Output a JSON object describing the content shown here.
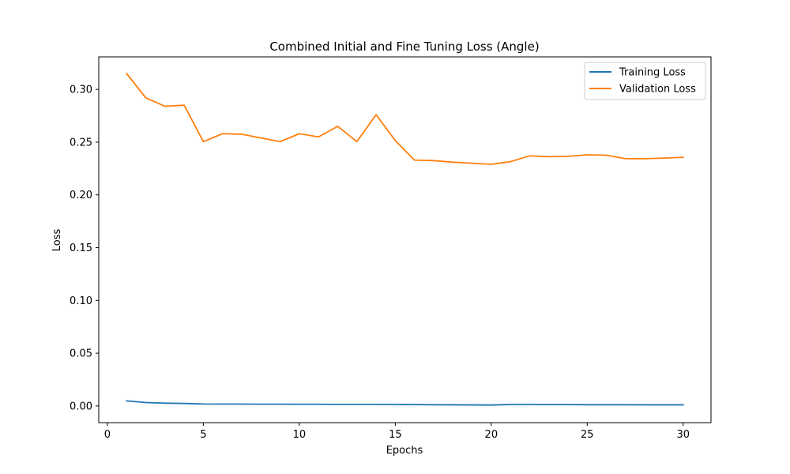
{
  "chart_data": {
    "type": "line",
    "title": "Combined Initial and Fine Tuning Loss (Angle)",
    "xlabel": "Epochs",
    "ylabel": "Loss",
    "xlim": [
      -0.45,
      31.45
    ],
    "ylim": [
      -0.0158,
      0.3308
    ],
    "xticks": [
      0,
      5,
      10,
      15,
      20,
      25,
      30
    ],
    "xtick_labels": [
      "0",
      "5",
      "10",
      "15",
      "20",
      "25",
      "30"
    ],
    "yticks": [
      0.0,
      0.05,
      0.1,
      0.15,
      0.2,
      0.25,
      0.3
    ],
    "ytick_labels": [
      "0.00",
      "0.05",
      "0.10",
      "0.15",
      "0.20",
      "0.25",
      "0.30"
    ],
    "grid": false,
    "legend_position": "top-right",
    "x": [
      1,
      2,
      3,
      4,
      5,
      6,
      7,
      8,
      9,
      10,
      11,
      12,
      13,
      14,
      15,
      16,
      17,
      18,
      19,
      20,
      21,
      22,
      23,
      24,
      25,
      26,
      27,
      28,
      29,
      30
    ],
    "series": [
      {
        "name": "Training Loss",
        "color": "#1f77b4",
        "values": [
          0.0048,
          0.0033,
          0.0027,
          0.0024,
          0.0019,
          0.0018,
          0.0018,
          0.0017,
          0.0017,
          0.0016,
          0.0016,
          0.0015,
          0.0015,
          0.0015,
          0.0014,
          0.0013,
          0.0012,
          0.0011,
          0.001,
          0.0009,
          0.0014,
          0.0014,
          0.0013,
          0.0013,
          0.0012,
          0.0012,
          0.0012,
          0.0011,
          0.0011,
          0.0011
        ]
      },
      {
        "name": "Validation Loss",
        "color": "#ff7f0e",
        "values": [
          0.315,
          0.292,
          0.284,
          0.285,
          0.2505,
          0.258,
          0.2575,
          0.254,
          0.2505,
          0.258,
          0.255,
          0.265,
          0.2505,
          0.276,
          0.2515,
          0.233,
          0.2325,
          0.231,
          0.23,
          0.229,
          0.2315,
          0.237,
          0.2362,
          0.2366,
          0.238,
          0.2376,
          0.2343,
          0.2343,
          0.2349,
          0.2356
        ]
      }
    ]
  }
}
